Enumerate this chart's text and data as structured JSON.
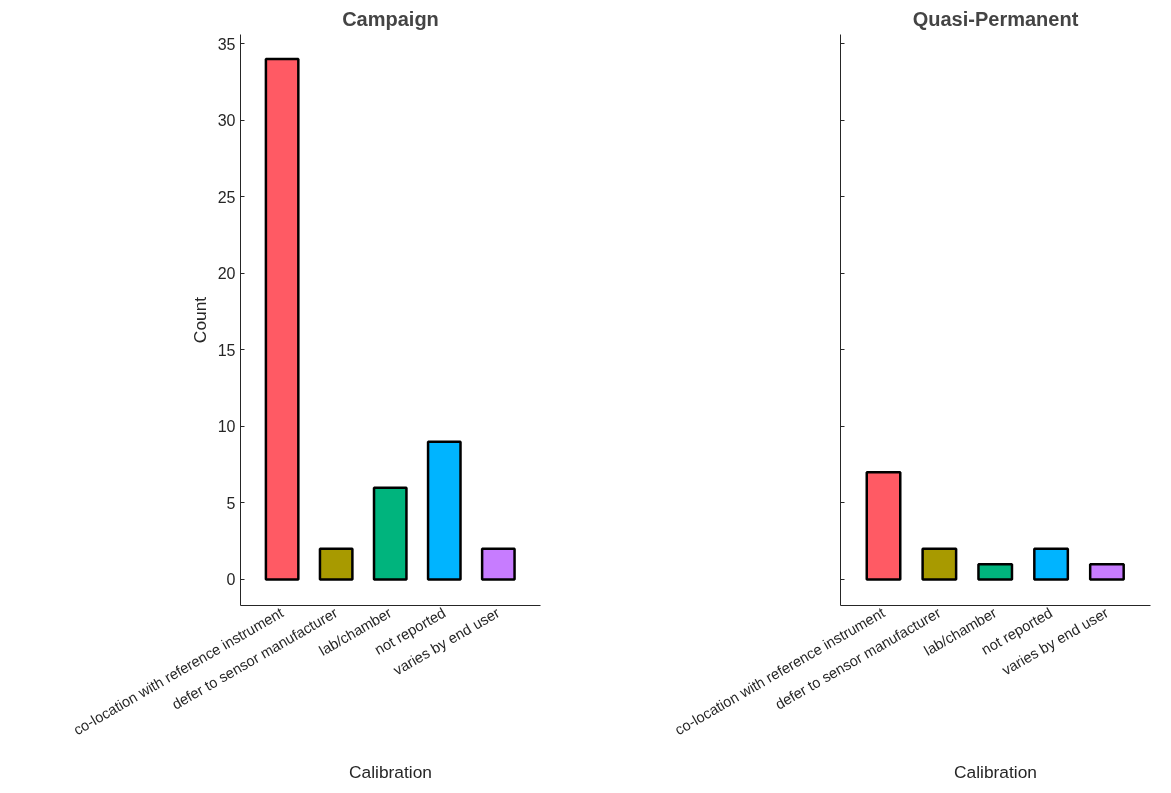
{
  "chart_data": [
    {
      "type": "bar",
      "title": "Campaign",
      "xlabel": "Calibration",
      "ylabel": "Count",
      "categories": [
        "co-location with reference instrument",
        "defer to sensor manufacturer",
        "lab/chamber",
        "not reported",
        "varies by end user"
      ],
      "values": [
        34,
        2,
        6,
        9,
        2
      ],
      "colors": [
        "#ff5a64",
        "#a89a00",
        "#00b47d",
        "#00b4ff",
        "#c77cff"
      ],
      "ylim": [
        -1.7,
        35.6
      ],
      "yticks": [
        0,
        5,
        10,
        15,
        20,
        25,
        30,
        35
      ],
      "grid": false
    },
    {
      "type": "bar",
      "title": "Quasi-Permanent",
      "xlabel": "Calibration",
      "categories": [
        "co-location with reference instrument",
        "defer to sensor manufacturer",
        "lab/chamber",
        "not reported",
        "varies by end user"
      ],
      "values": [
        7,
        2,
        1,
        2,
        1
      ],
      "colors": [
        "#ff5a64",
        "#a89a00",
        "#00b47d",
        "#00b4ff",
        "#c77cff"
      ],
      "ylim": [
        -1.7,
        35.6
      ],
      "yticks": [
        0,
        5,
        10,
        15,
        20,
        25,
        30,
        35
      ],
      "tick_labels": "x",
      "grid": false
    }
  ]
}
